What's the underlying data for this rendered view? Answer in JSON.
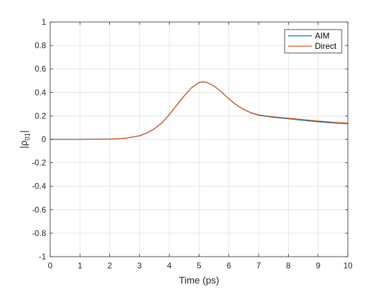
{
  "chart_data": {
    "type": "line",
    "xlabel": "Time (ps)",
    "ylabel_main": "|ρ",
    "ylabel_sub": "01",
    "ylabel_end": "|",
    "xlim": [
      0,
      10
    ],
    "ylim": [
      -1,
      1
    ],
    "xticks": [
      0,
      1,
      2,
      3,
      4,
      5,
      6,
      7,
      8,
      9,
      10
    ],
    "xtick_labels": [
      "0",
      "1",
      "2",
      "3",
      "4",
      "5",
      "6",
      "7",
      "8",
      "9",
      "10"
    ],
    "yticks": [
      -1,
      -0.8,
      -0.6,
      -0.4,
      -0.2,
      0,
      0.2,
      0.4,
      0.6,
      0.8,
      1
    ],
    "ytick_labels": [
      "-1",
      "-0.8",
      "-0.6",
      "-0.4",
      "-0.2",
      "0",
      "0.2",
      "0.4",
      "0.6",
      "0.8",
      "1"
    ],
    "grid": true,
    "legend_position": "top-right",
    "series": [
      {
        "name": "AIM",
        "color": "#0072BD",
        "x": [
          0,
          1,
          2,
          2.5,
          3,
          3.25,
          3.5,
          3.75,
          4,
          4.25,
          4.5,
          4.75,
          5,
          5.1,
          5.25,
          5.5,
          5.75,
          6,
          6.25,
          6.5,
          6.75,
          7,
          7.5,
          8,
          8.5,
          9,
          9.5,
          10
        ],
        "y": [
          0,
          0,
          0.002,
          0.008,
          0.03,
          0.055,
          0.09,
          0.14,
          0.21,
          0.29,
          0.37,
          0.44,
          0.485,
          0.49,
          0.487,
          0.455,
          0.405,
          0.345,
          0.295,
          0.255,
          0.225,
          0.205,
          0.188,
          0.175,
          0.162,
          0.15,
          0.14,
          0.133
        ]
      },
      {
        "name": "Direct",
        "color": "#D95319",
        "x": [
          0,
          1,
          2,
          2.5,
          3,
          3.25,
          3.5,
          3.75,
          4,
          4.25,
          4.5,
          4.75,
          5,
          5.1,
          5.25,
          5.5,
          5.75,
          6,
          6.25,
          6.5,
          6.75,
          7,
          7.5,
          8,
          8.5,
          9,
          9.5,
          10
        ],
        "y": [
          0,
          0,
          0.002,
          0.008,
          0.03,
          0.055,
          0.09,
          0.14,
          0.21,
          0.29,
          0.37,
          0.44,
          0.485,
          0.49,
          0.487,
          0.455,
          0.405,
          0.345,
          0.295,
          0.255,
          0.227,
          0.208,
          0.192,
          0.18,
          0.168,
          0.156,
          0.146,
          0.138
        ]
      }
    ]
  }
}
